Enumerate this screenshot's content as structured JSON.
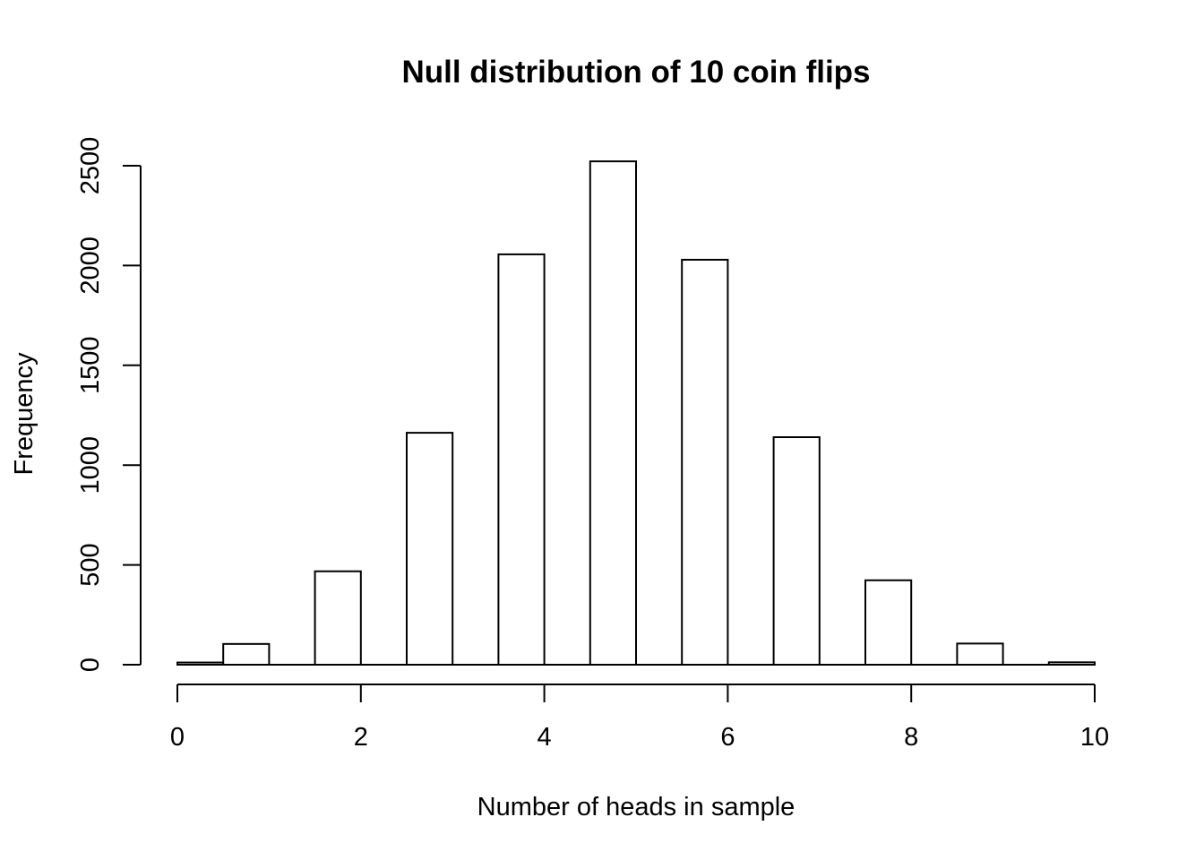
{
  "chart_data": {
    "type": "bar",
    "title": "Null distribution of 10 coin flips",
    "xlabel": "Number of heads in sample",
    "ylabel": "Frequency",
    "bins": [
      {
        "start": 0,
        "end": 0.5,
        "count": 11
      },
      {
        "start": 0.5,
        "end": 1,
        "count": 104
      },
      {
        "start": 1,
        "end": 1.5,
        "count": 0
      },
      {
        "start": 1.5,
        "end": 2,
        "count": 468
      },
      {
        "start": 2,
        "end": 2.5,
        "count": 0
      },
      {
        "start": 2.5,
        "end": 3,
        "count": 1162
      },
      {
        "start": 3,
        "end": 3.5,
        "count": 0
      },
      {
        "start": 3.5,
        "end": 4,
        "count": 2056
      },
      {
        "start": 4,
        "end": 4.5,
        "count": 0
      },
      {
        "start": 4.5,
        "end": 5,
        "count": 2522
      },
      {
        "start": 5,
        "end": 5.5,
        "count": 0
      },
      {
        "start": 5.5,
        "end": 6,
        "count": 2029
      },
      {
        "start": 6,
        "end": 6.5,
        "count": 0
      },
      {
        "start": 6.5,
        "end": 7,
        "count": 1140
      },
      {
        "start": 7,
        "end": 7.5,
        "count": 0
      },
      {
        "start": 7.5,
        "end": 8,
        "count": 423
      },
      {
        "start": 8,
        "end": 8.5,
        "count": 0
      },
      {
        "start": 8.5,
        "end": 9,
        "count": 106
      },
      {
        "start": 9,
        "end": 9.5,
        "count": 0
      },
      {
        "start": 9.5,
        "end": 10,
        "count": 12
      }
    ],
    "xlim": [
      0,
      10
    ],
    "ylim": [
      0,
      2500
    ],
    "xticks": [
      "0",
      "2",
      "4",
      "6",
      "8",
      "10"
    ],
    "yticks": [
      "0",
      "500",
      "1000",
      "1500",
      "2000",
      "2500"
    ],
    "grid": false,
    "colors": {
      "fill": "#ffffff",
      "stroke": "#000000"
    }
  }
}
